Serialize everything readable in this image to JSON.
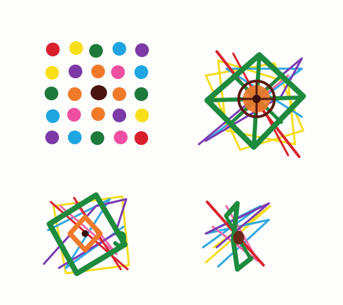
{
  "artwork": {
    "kind": "marker drawing on paper",
    "panels": [
      {
        "id": "dot-grid",
        "rows": [
          [
            "#d81f2e",
            "#f7e01a",
            "#1d7a3a",
            "#1fa6e0",
            "#7b3aa6"
          ],
          [
            "#f7e01a",
            "#7b3aa6",
            "#f07a2a",
            "#ef4fa0",
            "#1fa6e0"
          ],
          [
            "#1d7a3a",
            "#f07a2a",
            "#4a1410",
            "#f07a2a",
            "#1d7a3a"
          ],
          [
            "#1fa6e0",
            "#ef4fa0",
            "#f07a2a",
            "#7b3aa6",
            "#f7e01a"
          ],
          [
            "#7b3aa6",
            "#1fa6e0",
            "#1d7a3a",
            "#ef4fa0",
            "#d81f2e"
          ]
        ]
      },
      {
        "id": "star-diamond"
      },
      {
        "id": "tilted-square"
      },
      {
        "id": "scribble-lines"
      }
    ],
    "palette": {
      "green": "#1d8a3e",
      "yellow": "#f5dc1e",
      "red": "#d8242e",
      "purple": "#7a3ab0",
      "blue": "#2fa8e0",
      "pink": "#f06aa8",
      "orange": "#f07a2a",
      "brown": "#5a1a12"
    }
  }
}
